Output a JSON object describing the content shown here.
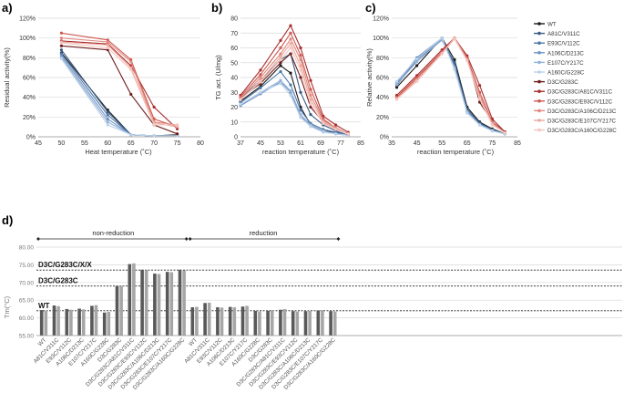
{
  "panels": {
    "a": {
      "label": "a)"
    },
    "b": {
      "label": "b)"
    },
    "c": {
      "label": "c)"
    },
    "d": {
      "label": "d)"
    }
  },
  "colors": {
    "WT": "#1c1c1c",
    "A81C/V311C": "#3b5b85",
    "E93C/V112C": "#4e79a8",
    "A106C/D213C": "#6f93c4",
    "E107C/Y217C": "#93b2d8",
    "A160C/G228C": "#bcd2ea",
    "D3C/G283C": "#6e1f1f",
    "D3C/G283C/A81C/V311C": "#a82f2f",
    "D3C/G283C/E93C/V112C": "#cf5a52",
    "D3C/G283C/A106C/D213C": "#e08a80",
    "D3C/G283C/E107C/Y217C": "#eda9a0",
    "D3C/G283C/A160C/G228C": "#f5c7bf",
    "bar_dark": "#595959",
    "bar_light": "#a6a6a6",
    "refline": "#222222",
    "grid": "#d9d9d9"
  },
  "legend": {
    "entries": [
      "WT",
      "A81C/V311C",
      "E93C/V112C",
      "A106C/D213C",
      "E107C/Y217C",
      "A160C/G228C",
      "D3C/G283C",
      "D3C/G283C/A81C/V311C",
      "D3C/G283C/E93C/V112C",
      "D3C/G283C/A106C/D213C",
      "D3C/G283C/E107C/Y217C",
      "D3C/G283C/A160C/G228C"
    ]
  },
  "chart_data": [
    {
      "panel": "a",
      "type": "line",
      "xlabel": "Heat temperature (˚C)",
      "ylabel": "Residual activity(%)",
      "xlim": [
        45,
        80
      ],
      "ylim": [
        0,
        120
      ],
      "xticks": [
        "45",
        "50",
        "55",
        "60",
        "65",
        "70",
        "75",
        "80"
      ],
      "yticks": [
        "0%",
        "20%",
        "40%",
        "60%",
        "80%",
        "100%",
        "120%"
      ],
      "x": [
        50,
        60,
        65,
        70,
        75
      ],
      "series": [
        {
          "name": "WT",
          "values": [
            85,
            27,
            2,
            1,
            2
          ]
        },
        {
          "name": "A81C/V311C",
          "values": [
            88,
            25,
            2,
            1,
            1
          ]
        },
        {
          "name": "E93C/V112C",
          "values": [
            84,
            22,
            2,
            1,
            1
          ]
        },
        {
          "name": "A106C/D213C",
          "values": [
            82,
            18,
            2,
            1,
            1
          ]
        },
        {
          "name": "E107C/Y217C",
          "values": [
            80,
            15,
            2,
            1,
            1
          ]
        },
        {
          "name": "A160C/G228C",
          "values": [
            79,
            12,
            2,
            1,
            1
          ]
        },
        {
          "name": "D3C/G283C",
          "values": [
            92,
            88,
            43,
            12,
            3
          ]
        },
        {
          "name": "D3C/G283C/A81C/V311C",
          "values": [
            97,
            94,
            72,
            30,
            8
          ]
        },
        {
          "name": "D3C/G283C/E93C/V112C",
          "values": [
            105,
            98,
            78,
            18,
            10
          ]
        },
        {
          "name": "D3C/G283C/A106C/D213C",
          "values": [
            100,
            96,
            76,
            15,
            12
          ]
        },
        {
          "name": "D3C/G283C/E107C/Y217C",
          "values": [
            96,
            93,
            70,
            14,
            10
          ]
        },
        {
          "name": "D3C/G283C/A160C/G228C",
          "values": [
            95,
            90,
            68,
            12,
            12
          ]
        }
      ]
    },
    {
      "panel": "b",
      "type": "line",
      "xlabel": "reaction temperature (˚C)",
      "ylabel": "TG act. (U/mg)",
      "xlim": [
        37,
        85
      ],
      "ylim": [
        0,
        80
      ],
      "xticks": [
        "37",
        "45",
        "53",
        "61",
        "69",
        "77",
        "85"
      ],
      "yticks": [
        "0",
        "10",
        "20",
        "30",
        "40",
        "50",
        "60",
        "70",
        "80"
      ],
      "x": [
        37,
        45,
        53,
        57,
        61,
        65,
        70,
        75,
        80
      ],
      "series": [
        {
          "name": "WT",
          "values": [
            24,
            34,
            48,
            43,
            20,
            8,
            4,
            3,
            1
          ]
        },
        {
          "name": "A81C/V311C",
          "values": [
            26,
            38,
            52,
            56,
            30,
            15,
            8,
            4,
            1
          ]
        },
        {
          "name": "E93C/V112C",
          "values": [
            23,
            33,
            44,
            35,
            18,
            9,
            5,
            3,
            1
          ]
        },
        {
          "name": "A106C/D213C",
          "values": [
            21,
            29,
            37,
            30,
            14,
            7,
            4,
            2,
            1
          ]
        },
        {
          "name": "E107C/Y217C",
          "values": [
            22,
            30,
            38,
            31,
            15,
            8,
            4,
            2,
            1
          ]
        },
        {
          "name": "A160C/G228C",
          "values": [
            22,
            30,
            36,
            28,
            13,
            7,
            3,
            2,
            1
          ]
        },
        {
          "name": "D3C/G283C",
          "values": [
            26,
            36,
            50,
            56,
            40,
            20,
            10,
            5,
            2
          ]
        },
        {
          "name": "D3C/G283C/A81C/V311C",
          "values": [
            28,
            45,
            65,
            75,
            60,
            38,
            14,
            8,
            3
          ]
        },
        {
          "name": "D3C/G283C/E93C/V112C",
          "values": [
            27,
            42,
            60,
            70,
            55,
            32,
            12,
            6,
            2
          ]
        },
        {
          "name": "D3C/G283C/A106C/D213C",
          "values": [
            26,
            40,
            56,
            66,
            52,
            28,
            11,
            6,
            2
          ]
        },
        {
          "name": "D3C/G283C/E107C/Y217C",
          "values": [
            25,
            38,
            54,
            63,
            48,
            25,
            10,
            5,
            2
          ]
        },
        {
          "name": "D3C/G283C/A160C/G228C",
          "values": [
            25,
            37,
            52,
            60,
            45,
            22,
            9,
            5,
            2
          ]
        }
      ]
    },
    {
      "panel": "c",
      "type": "line",
      "xlabel": "reaction temperature (˚C)",
      "ylabel": "Relative activity(%)",
      "xlim": [
        35,
        85
      ],
      "ylim": [
        0,
        120
      ],
      "xticks": [
        "35",
        "45",
        "55",
        "65",
        "75",
        "85"
      ],
      "yticks": [
        "0%",
        "20%",
        "40%",
        "60%",
        "80%",
        "100%",
        "120%"
      ],
      "x": [
        37,
        45,
        55,
        60,
        65,
        70,
        75,
        80
      ],
      "series": [
        {
          "name": "WT",
          "values": [
            50,
            72,
            100,
            78,
            30,
            15,
            8,
            3
          ]
        },
        {
          "name": "A81C/V311C",
          "values": [
            52,
            78,
            98,
            75,
            28,
            14,
            7,
            3
          ]
        },
        {
          "name": "E93C/V112C",
          "values": [
            54,
            80,
            100,
            72,
            26,
            13,
            7,
            3
          ]
        },
        {
          "name": "A106C/D213C",
          "values": [
            55,
            78,
            99,
            70,
            25,
            12,
            6,
            3
          ]
        },
        {
          "name": "E107C/Y217C",
          "values": [
            53,
            76,
            98,
            70,
            25,
            12,
            6,
            3
          ]
        },
        {
          "name": "A160C/G228C",
          "values": [
            56,
            79,
            100,
            68,
            24,
            12,
            6,
            3
          ]
        },
        {
          "name": "D3C/G283C",
          "values": [
            40,
            60,
            85,
            100,
            80,
            35,
            15,
            5
          ]
        },
        {
          "name": "D3C/G283C/A81C/V311C",
          "values": [
            42,
            62,
            88,
            100,
            82,
            52,
            18,
            5
          ]
        },
        {
          "name": "D3C/G283C/E93C/V112C",
          "values": [
            40,
            60,
            86,
            100,
            80,
            45,
            15,
            4
          ]
        },
        {
          "name": "D3C/G283C/A106C/D213C",
          "values": [
            39,
            58,
            85,
            100,
            78,
            42,
            14,
            4
          ]
        },
        {
          "name": "D3C/G283C/E107C/Y217C",
          "values": [
            38,
            57,
            84,
            100,
            78,
            40,
            13,
            4
          ]
        },
        {
          "name": "D3C/G283C/A160C/G228C",
          "values": [
            38,
            56,
            84,
            99,
            77,
            38,
            12,
            4
          ]
        }
      ]
    },
    {
      "panel": "d",
      "type": "bar",
      "ylabel": "Tm(°C)",
      "ylim": [
        55,
        80
      ],
      "yticks": [
        "55.00",
        "60.00",
        "65.00",
        "70.00",
        "75.00",
        "80.00"
      ],
      "group_labels": [
        "non-reduction",
        "reduction"
      ],
      "reference_lines": [
        {
          "label": "WT",
          "value": 62.0
        },
        {
          "label": "D3C/G283C",
          "value": 69.0
        },
        {
          "label": "D3C/G283C/X/X",
          "value": 73.5
        }
      ],
      "categories": [
        "WT",
        "A81C/V311C",
        "E93C/V112C",
        "A106C/D213C",
        "E107C/Y217C",
        "A160C/G228C",
        "D3C/G283C",
        "D3C/G283C/A81C/V311C",
        "D3C/G283C/E93C/V112C",
        "D3C/G283C/A106C/D213C",
        "D3C/G283C/E107C/Y217C",
        "D3C/G283C/A160C/G228C",
        "WT",
        "A81C/V311C",
        "E93C/V112C",
        "A106C/D213C",
        "E107C/Y217C",
        "A160C/G228C",
        "D3C/G283C",
        "D3C/G283C/A81C/V311C",
        "D3C/G283C/E93C/V112C",
        "D3C/G283C/A106C/D213C",
        "D3C/G283C/E107C/Y217C",
        "D3C/G283C/A160C/G228C"
      ],
      "series": [
        {
          "name": "replicate 1",
          "values": [
            62.2,
            63.5,
            62.5,
            62.6,
            63.4,
            61.5,
            69.0,
            75.2,
            73.6,
            72.5,
            73.0,
            73.6,
            63.0,
            64.2,
            63.0,
            63.1,
            63.2,
            62.0,
            62.0,
            62.3,
            61.9,
            61.9,
            62.1,
            61.9
          ]
        },
        {
          "name": "replicate 2",
          "values": [
            62.0,
            63.3,
            62.3,
            62.4,
            63.6,
            61.7,
            69.0,
            75.4,
            73.5,
            72.4,
            72.9,
            73.4,
            63.1,
            64.3,
            62.9,
            63.0,
            63.4,
            61.8,
            62.2,
            62.5,
            61.8,
            62.0,
            62.2,
            61.8
          ]
        }
      ]
    }
  ]
}
